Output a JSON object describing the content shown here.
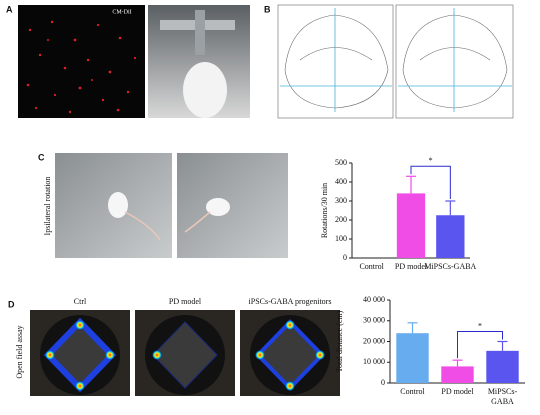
{
  "panels": {
    "a": {
      "label": "A",
      "stain": "CM-DiI"
    },
    "b": {
      "label": "B"
    },
    "c": {
      "label": "C",
      "side_label": "Ipsilateral rotation"
    },
    "d": {
      "label": "D",
      "side_label": "Open field assay",
      "captions": [
        "Ctrl",
        "PD model",
        "iPSCs-GABA progenitors"
      ]
    }
  },
  "chart_data": [
    {
      "type": "bar",
      "y_label": "Rotations/30 min",
      "categories": [
        "Control",
        "PD model",
        "MiPSCs-GABA"
      ],
      "values": [
        0,
        340,
        225
      ],
      "errors": [
        null,
        90,
        75
      ],
      "colors": [
        null,
        "#f04ce6",
        "#5a55ee"
      ],
      "ylim": [
        0,
        500
      ],
      "yticks": [
        0,
        100,
        200,
        300,
        400,
        500
      ],
      "annotation": "*"
    },
    {
      "type": "bar",
      "y_label": "Total distance (cm)",
      "categories": [
        "Control",
        "PD model",
        "MiPSCs-GABA"
      ],
      "values": [
        24000,
        8000,
        15500
      ],
      "errors": [
        5000,
        3000,
        4500
      ],
      "colors": [
        "#66acee",
        "#f04ce6",
        "#5a55ee"
      ],
      "ylim": [
        0,
        40000
      ],
      "yticks": [
        0,
        {
          "value": 10000,
          "label": "10 000"
        },
        {
          "value": 20000,
          "label": "20 000"
        },
        {
          "value": 30000,
          "label": "30 000"
        },
        {
          "value": 40000,
          "label": "40 000"
        }
      ],
      "annotation": "*"
    }
  ]
}
